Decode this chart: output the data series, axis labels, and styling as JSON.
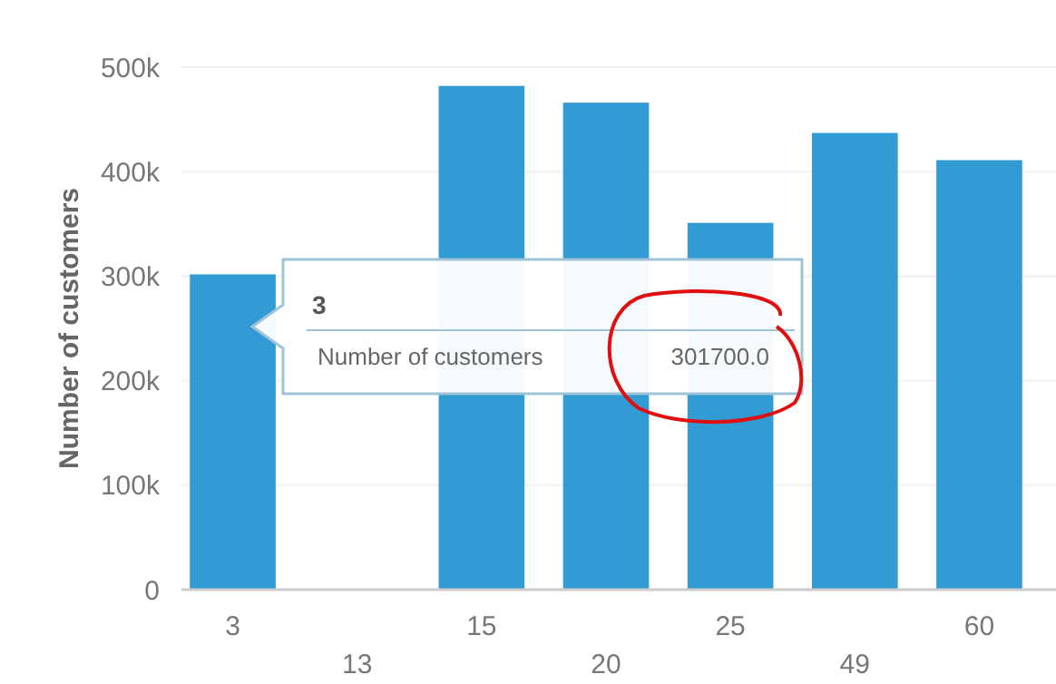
{
  "chart_data": {
    "type": "bar",
    "ylabel": "Number of customers",
    "categories": [
      "3",
      "13",
      "15",
      "20",
      "25",
      "49",
      "60"
    ],
    "values": [
      301700,
      null,
      482000,
      466000,
      351000,
      437000,
      411000
    ],
    "color": "#319bd4",
    "ylim": [
      0,
      500000
    ],
    "yticks": [
      {
        "value": 0,
        "label": "0"
      },
      {
        "value": 100000,
        "label": "100k"
      },
      {
        "value": 200000,
        "label": "200k"
      },
      {
        "value": 300000,
        "label": "300k"
      },
      {
        "value": 400000,
        "label": "400k"
      },
      {
        "value": 500000,
        "label": "500k"
      }
    ],
    "grid": "y",
    "annotations": [
      "3",
      "Number of customers",
      "301700.0"
    ]
  }
}
